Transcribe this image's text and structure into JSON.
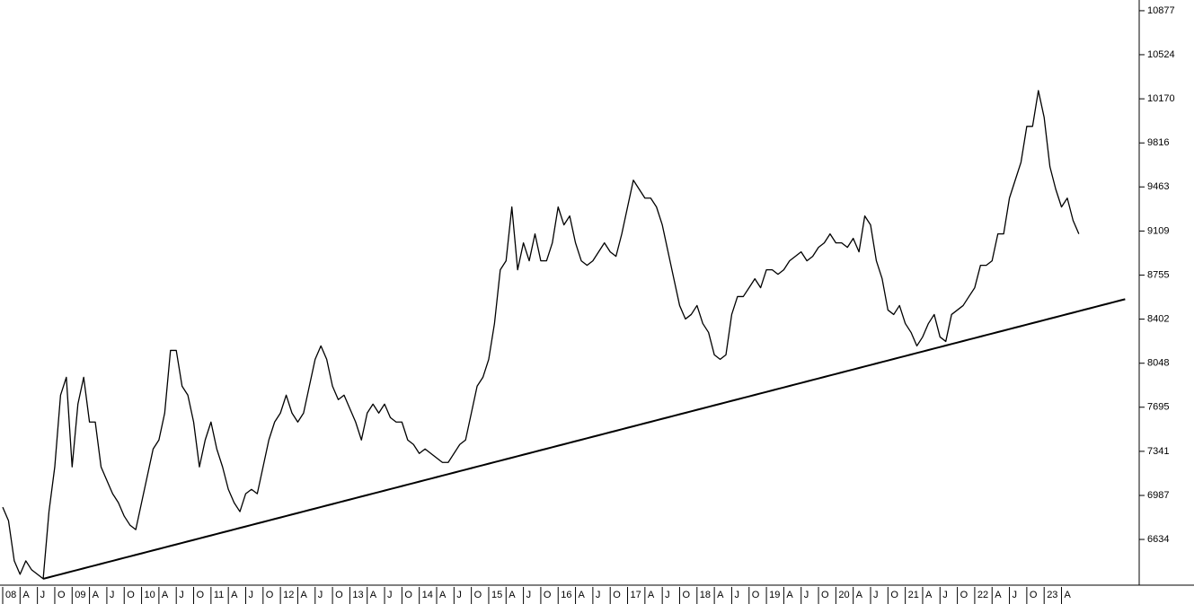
{
  "chart_data": {
    "type": "line",
    "categories": [
      "08",
      null,
      null,
      "A",
      null,
      null,
      "J",
      null,
      null,
      "O",
      null,
      null,
      "09",
      null,
      null,
      "A",
      null,
      null,
      "J",
      null,
      null,
      "O",
      null,
      null,
      "10",
      null,
      null,
      "A",
      null,
      null,
      "J",
      null,
      null,
      "O",
      null,
      null,
      "11",
      null,
      null,
      "A",
      null,
      null,
      "J",
      null,
      null,
      "O",
      null,
      null,
      "12",
      null,
      null,
      "A",
      null,
      null,
      "J",
      null,
      null,
      "O",
      null,
      null,
      "13",
      null,
      null,
      "A",
      null,
      null,
      "J",
      null,
      null,
      "O",
      null,
      null,
      "14",
      null,
      null,
      "A",
      null,
      null,
      "J",
      null,
      null,
      "O",
      null,
      null,
      "15",
      null,
      null,
      "A",
      null,
      null,
      "J",
      null,
      null,
      "O",
      null,
      null,
      "16",
      null,
      null,
      "A",
      null,
      null,
      "J",
      null,
      null,
      "O",
      null,
      null,
      "17",
      null,
      null,
      "A",
      null,
      null,
      "J",
      null,
      null,
      "O",
      null,
      null,
      "18",
      null,
      null,
      "A",
      null,
      null,
      "J",
      null,
      null,
      "O",
      null,
      null,
      "19",
      null,
      null,
      "A",
      null,
      null,
      "J",
      null,
      null,
      "O",
      null,
      null,
      "20",
      null,
      null,
      "A",
      null,
      null,
      "J",
      null,
      null,
      "O",
      null,
      null,
      "21",
      null,
      null,
      "A",
      null,
      null,
      "J",
      null,
      null,
      "O",
      null,
      null,
      "22",
      null,
      null,
      "A",
      null,
      null,
      "J",
      null,
      null,
      "O",
      null,
      null,
      "23",
      null,
      null,
      "A",
      null,
      null,
      null,
      null,
      null,
      null,
      null,
      null,
      null,
      null,
      null,
      null,
      null
    ],
    "series": [
      {
        "color": "#000000",
        "values": [
          6893,
          6785,
          6462,
          6354,
          6462,
          6390,
          6354,
          6318,
          6857,
          7216,
          7792,
          7935,
          7216,
          7720,
          7935,
          7576,
          7576,
          7216,
          7108,
          7001,
          6929,
          6821,
          6749,
          6713,
          6929,
          7144,
          7360,
          7432,
          7648,
          8151,
          8151,
          7864,
          7792,
          7576,
          7216,
          7432,
          7576,
          7360,
          7216,
          7036,
          6929,
          6857,
          7001,
          7036,
          7001,
          7216,
          7432,
          7576,
          7648,
          7792,
          7648,
          7576,
          7648,
          7864,
          8079,
          8187,
          8079,
          7864,
          7756,
          7792,
          7684,
          7576,
          7432,
          7648,
          7720,
          7648,
          7720,
          7612,
          7576,
          7576,
          7432,
          7396,
          7324,
          7360,
          7324,
          7288,
          7252,
          7252,
          7324,
          7396,
          7432,
          7648,
          7864,
          7935,
          8079,
          8367,
          8798,
          8870,
          9302,
          8798,
          9014,
          8870,
          9086,
          8870,
          8870,
          9014,
          9302,
          9158,
          9230,
          9014,
          8870,
          8834,
          8870,
          8942,
          9014,
          8942,
          8906,
          9086,
          9302,
          9517,
          9445,
          9373,
          9373,
          9302,
          9158,
          8942,
          8726,
          8511,
          8403,
          8439,
          8511,
          8367,
          8295,
          8115,
          8079,
          8115,
          8439,
          8583,
          8583,
          8654,
          8726,
          8654,
          8798,
          8798,
          8762,
          8798,
          8870,
          8906,
          8942,
          8870,
          8906,
          8978,
          9014,
          9086,
          9014,
          9014,
          8978,
          9050,
          8942,
          9230,
          9158,
          8870,
          8726,
          8475,
          8439,
          8511,
          8367,
          8295,
          8187,
          8259,
          8367,
          8439,
          8259,
          8223,
          8439,
          8475,
          8511,
          8583,
          8654,
          8834,
          8834,
          8870,
          9086,
          9086,
          9373,
          9517,
          9661,
          9949,
          9949,
          10236,
          10021,
          9625,
          9445,
          9302,
          9373,
          9194,
          9086,
          null,
          null,
          null,
          null,
          null,
          null,
          null,
          null,
          null,
          null
        ]
      },
      {
        "color": "#000000",
        "values": [
          null,
          null,
          null,
          null,
          null,
          null,
          null,
          6318,
          6330,
          6342,
          6354,
          6366,
          6378,
          6390,
          6402,
          6414,
          6426,
          6438,
          6450,
          6462,
          6474,
          6486,
          6498,
          6510,
          6522,
          6534,
          6546,
          6558,
          6570,
          6582,
          6594,
          6606,
          6618,
          6630,
          6642,
          6654,
          6666,
          6678,
          6690,
          6702,
          6714,
          6726,
          6738,
          6750,
          6762,
          6774,
          6786,
          6798,
          6810,
          6822,
          6834,
          6846,
          6858,
          6870,
          6882,
          6894,
          6906,
          6918,
          6930,
          6942,
          6954,
          6966,
          6978,
          6990,
          7002,
          7014,
          7026,
          7038,
          7050,
          7062,
          7074,
          7086,
          7098,
          7110,
          7122,
          7134,
          7146,
          7158,
          7170,
          7182,
          7194,
          7206,
          7218,
          7230,
          7242,
          7254,
          7266,
          7278,
          7290,
          7302,
          7314,
          7326,
          7338,
          7350,
          7362,
          7374,
          7386,
          7398,
          7410,
          7422,
          7434,
          7446,
          7458,
          7470,
          7482,
          7494,
          7506,
          7518,
          7530,
          7542,
          7554,
          7566,
          7578,
          7590,
          7602,
          7614,
          7626,
          7638,
          7650,
          7662,
          7674,
          7686,
          7698,
          7710,
          7722,
          7734,
          7746,
          7758,
          7770,
          7782,
          7794,
          7806,
          7818,
          7830,
          7842,
          7854,
          7866,
          7878,
          7890,
          7902,
          7914,
          7926,
          7938,
          7950,
          7962,
          7974,
          7986,
          7998,
          8010,
          8022,
          8034,
          8046,
          8058,
          8070,
          8082,
          8094,
          8106,
          8118,
          8130,
          8142,
          8154,
          8166,
          8178,
          8190,
          8202,
          8214,
          8226,
          8238,
          8250,
          8262,
          8274,
          8286,
          8298,
          8310,
          8322,
          8334,
          8346,
          8358,
          8370,
          8382,
          8394,
          8406,
          8418,
          8430,
          8442,
          8454,
          8466,
          8478,
          8490,
          8502,
          8514,
          8526,
          8538,
          8550,
          8562,
          null,
          null
        ]
      }
    ],
    "ylim": [
      6267,
      10963
    ],
    "yticks": [
      6634,
      6987,
      7341,
      7695,
      8048,
      8402,
      8755,
      9109,
      9463,
      9816,
      10170,
      10524,
      10877
    ],
    "grid": false
  }
}
